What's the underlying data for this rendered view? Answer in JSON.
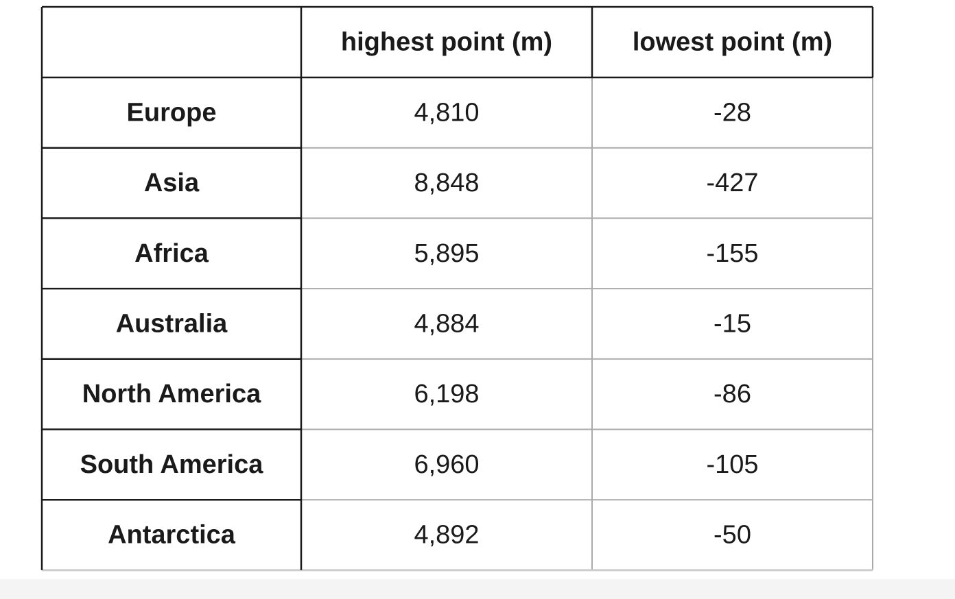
{
  "table": {
    "header": [
      "highest point (m)",
      "lowest point (m)"
    ],
    "rows": [
      [
        "Europe",
        "4,810",
        "-28"
      ],
      [
        "Asia",
        "8,848",
        "-427"
      ],
      [
        "Africa",
        "5,895",
        "-155"
      ],
      [
        "Australia",
        "4,884",
        "-15"
      ],
      [
        "North America",
        "6,198",
        "-86"
      ],
      [
        "South America",
        "6,960",
        "-105"
      ],
      [
        "Antarctica",
        "4,892",
        "-50"
      ]
    ]
  }
}
